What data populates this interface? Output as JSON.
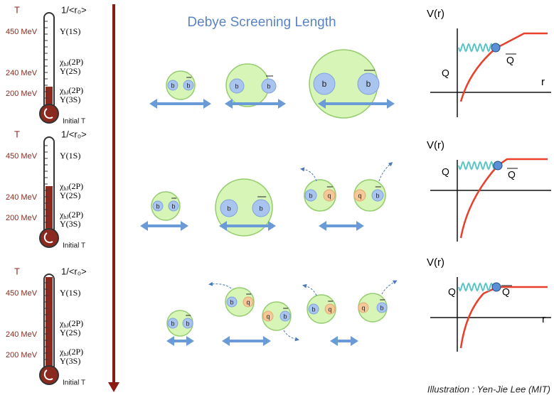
{
  "title": "Debye Screening Length",
  "thermometers": [
    {
      "temp_symbol": "T",
      "radius_label": "1/<r₀>",
      "temperatures": [
        "450 MeV",
        "240 MeV",
        "200 MeV"
      ],
      "states": [
        "Υ(1S)",
        {
          "symbol": "χ",
          "sub": "bJ",
          "rest": "(2P)"
        },
        "Υ(2S)",
        {
          "symbol": "χ",
          "sub": "bJ",
          "rest": "(2P)"
        },
        "Υ(3S)"
      ],
      "initial": "Initial T"
    },
    {
      "temp_symbol": "T",
      "radius_label": "1/<r₀>",
      "temperatures": [
        "450 MeV",
        "240 MeV",
        "200 MeV"
      ],
      "states": [
        "Υ(1S)",
        {
          "symbol": "χ",
          "sub": "bJ",
          "rest": "(2P)"
        },
        "Υ(2S)",
        {
          "symbol": "χ",
          "sub": "bJ",
          "rest": "(2P)"
        },
        "Υ(3S)"
      ],
      "initial": "Initial T"
    },
    {
      "temp_symbol": "T",
      "radius_label": "1/<r₀>",
      "temperatures": [
        "450 MeV",
        "240 MeV",
        "200 MeV"
      ],
      "states": [
        "Υ(1S)",
        {
          "symbol": "χ",
          "sub": "bJ",
          "rest": "(2P)"
        },
        "Υ(2S)",
        {
          "symbol": "χ",
          "sub": "bJ",
          "rest": "(2P)"
        },
        "Υ(3S)"
      ],
      "initial": "Initial T"
    }
  ],
  "quark_labels": {
    "b": "b",
    "q": "q"
  },
  "potential_plots": [
    {
      "y_label": "V(r)",
      "quark": "Q",
      "antiquark": "Q",
      "x_label": "r"
    },
    {
      "y_label": "V(r)",
      "quark": "Q",
      "antiquark": "Q"
    },
    {
      "y_label": "V(r)",
      "quark": "Q",
      "antiquark": "Q",
      "x_label": "r"
    }
  ],
  "credit": "Illustration : Yen-Jie Lee (MIT)"
}
